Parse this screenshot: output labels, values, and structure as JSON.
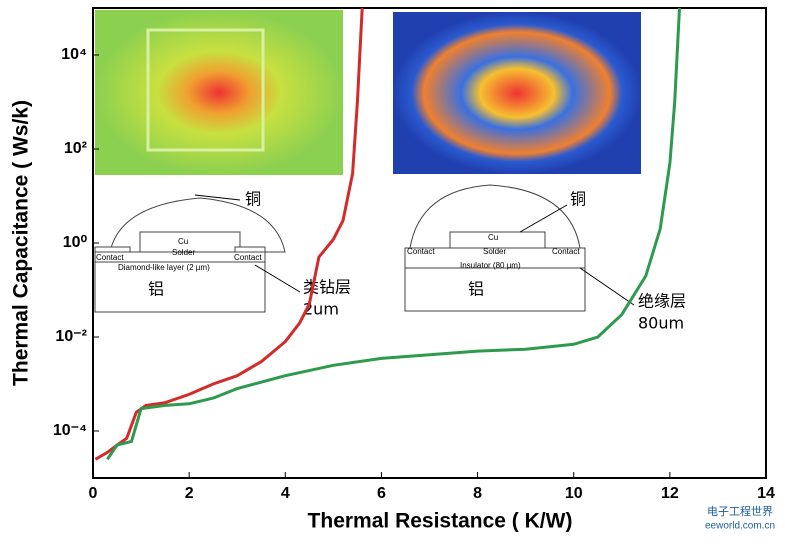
{
  "chart_data": {
    "type": "line",
    "x_label": "Thermal Resistance ( K/W)",
    "y_label": "Thermal Capacitance ( Ws/k)",
    "log_y": true,
    "xlim": [
      0,
      14
    ],
    "xticks": [
      0,
      2,
      4,
      6,
      8,
      10,
      12,
      14
    ],
    "ylim": [
      1e-05,
      100000
    ],
    "yticks": [
      {
        "value": 0.0001,
        "label": "10⁻⁴"
      },
      {
        "value": 0.01,
        "label": "10⁻²"
      },
      {
        "value": 1,
        "label": "10⁰"
      },
      {
        "value": 100,
        "label": "10²"
      },
      {
        "value": 10000,
        "label": "10⁴"
      }
    ],
    "series": [
      {
        "color": "#d42a2a",
        "x": [
          0.05,
          0.3,
          0.5,
          0.7,
          0.9,
          1.1,
          1.5,
          2,
          2.5,
          3,
          3.5,
          4,
          4.3,
          4.5,
          4.7,
          5,
          5.2,
          5.4,
          5.5,
          5.6
        ],
        "values": [
          2.5e-05,
          3.5e-05,
          5e-05,
          7e-05,
          0.00025,
          0.00035,
          0.0004,
          0.0006,
          0.001,
          0.0015,
          0.003,
          0.008,
          0.02,
          0.05,
          0.5,
          1.2,
          3,
          30,
          1000,
          100000
        ]
      },
      {
        "color": "#2e9a4e",
        "x": [
          0.3,
          0.5,
          0.8,
          1,
          1.5,
          2,
          2.5,
          3,
          4,
          5,
          6,
          7,
          8,
          9,
          10,
          10.5,
          11,
          11.5,
          11.8,
          12,
          12.1,
          12.2
        ],
        "values": [
          2.5e-05,
          5e-05,
          6e-05,
          0.0003,
          0.00035,
          0.00038,
          0.0005,
          0.0008,
          0.0015,
          0.0025,
          0.0035,
          0.0042,
          0.005,
          0.0055,
          0.007,
          0.01,
          0.03,
          0.2,
          2,
          50,
          1000,
          100000
        ]
      }
    ],
    "annotations": [
      "铜",
      "类钻层",
      "2um",
      "铝",
      "铜",
      "绝缘层",
      "80um",
      "铝",
      "Cu",
      "Solder",
      "Contact",
      "Contact",
      "Diamond-like layer (2 µm)",
      "Cu",
      "Solder",
      "Contact",
      "Contact",
      "Insulator (80 µm)"
    ],
    "watermark": [
      "电子工程世界",
      "eeworld.com.cn"
    ]
  }
}
